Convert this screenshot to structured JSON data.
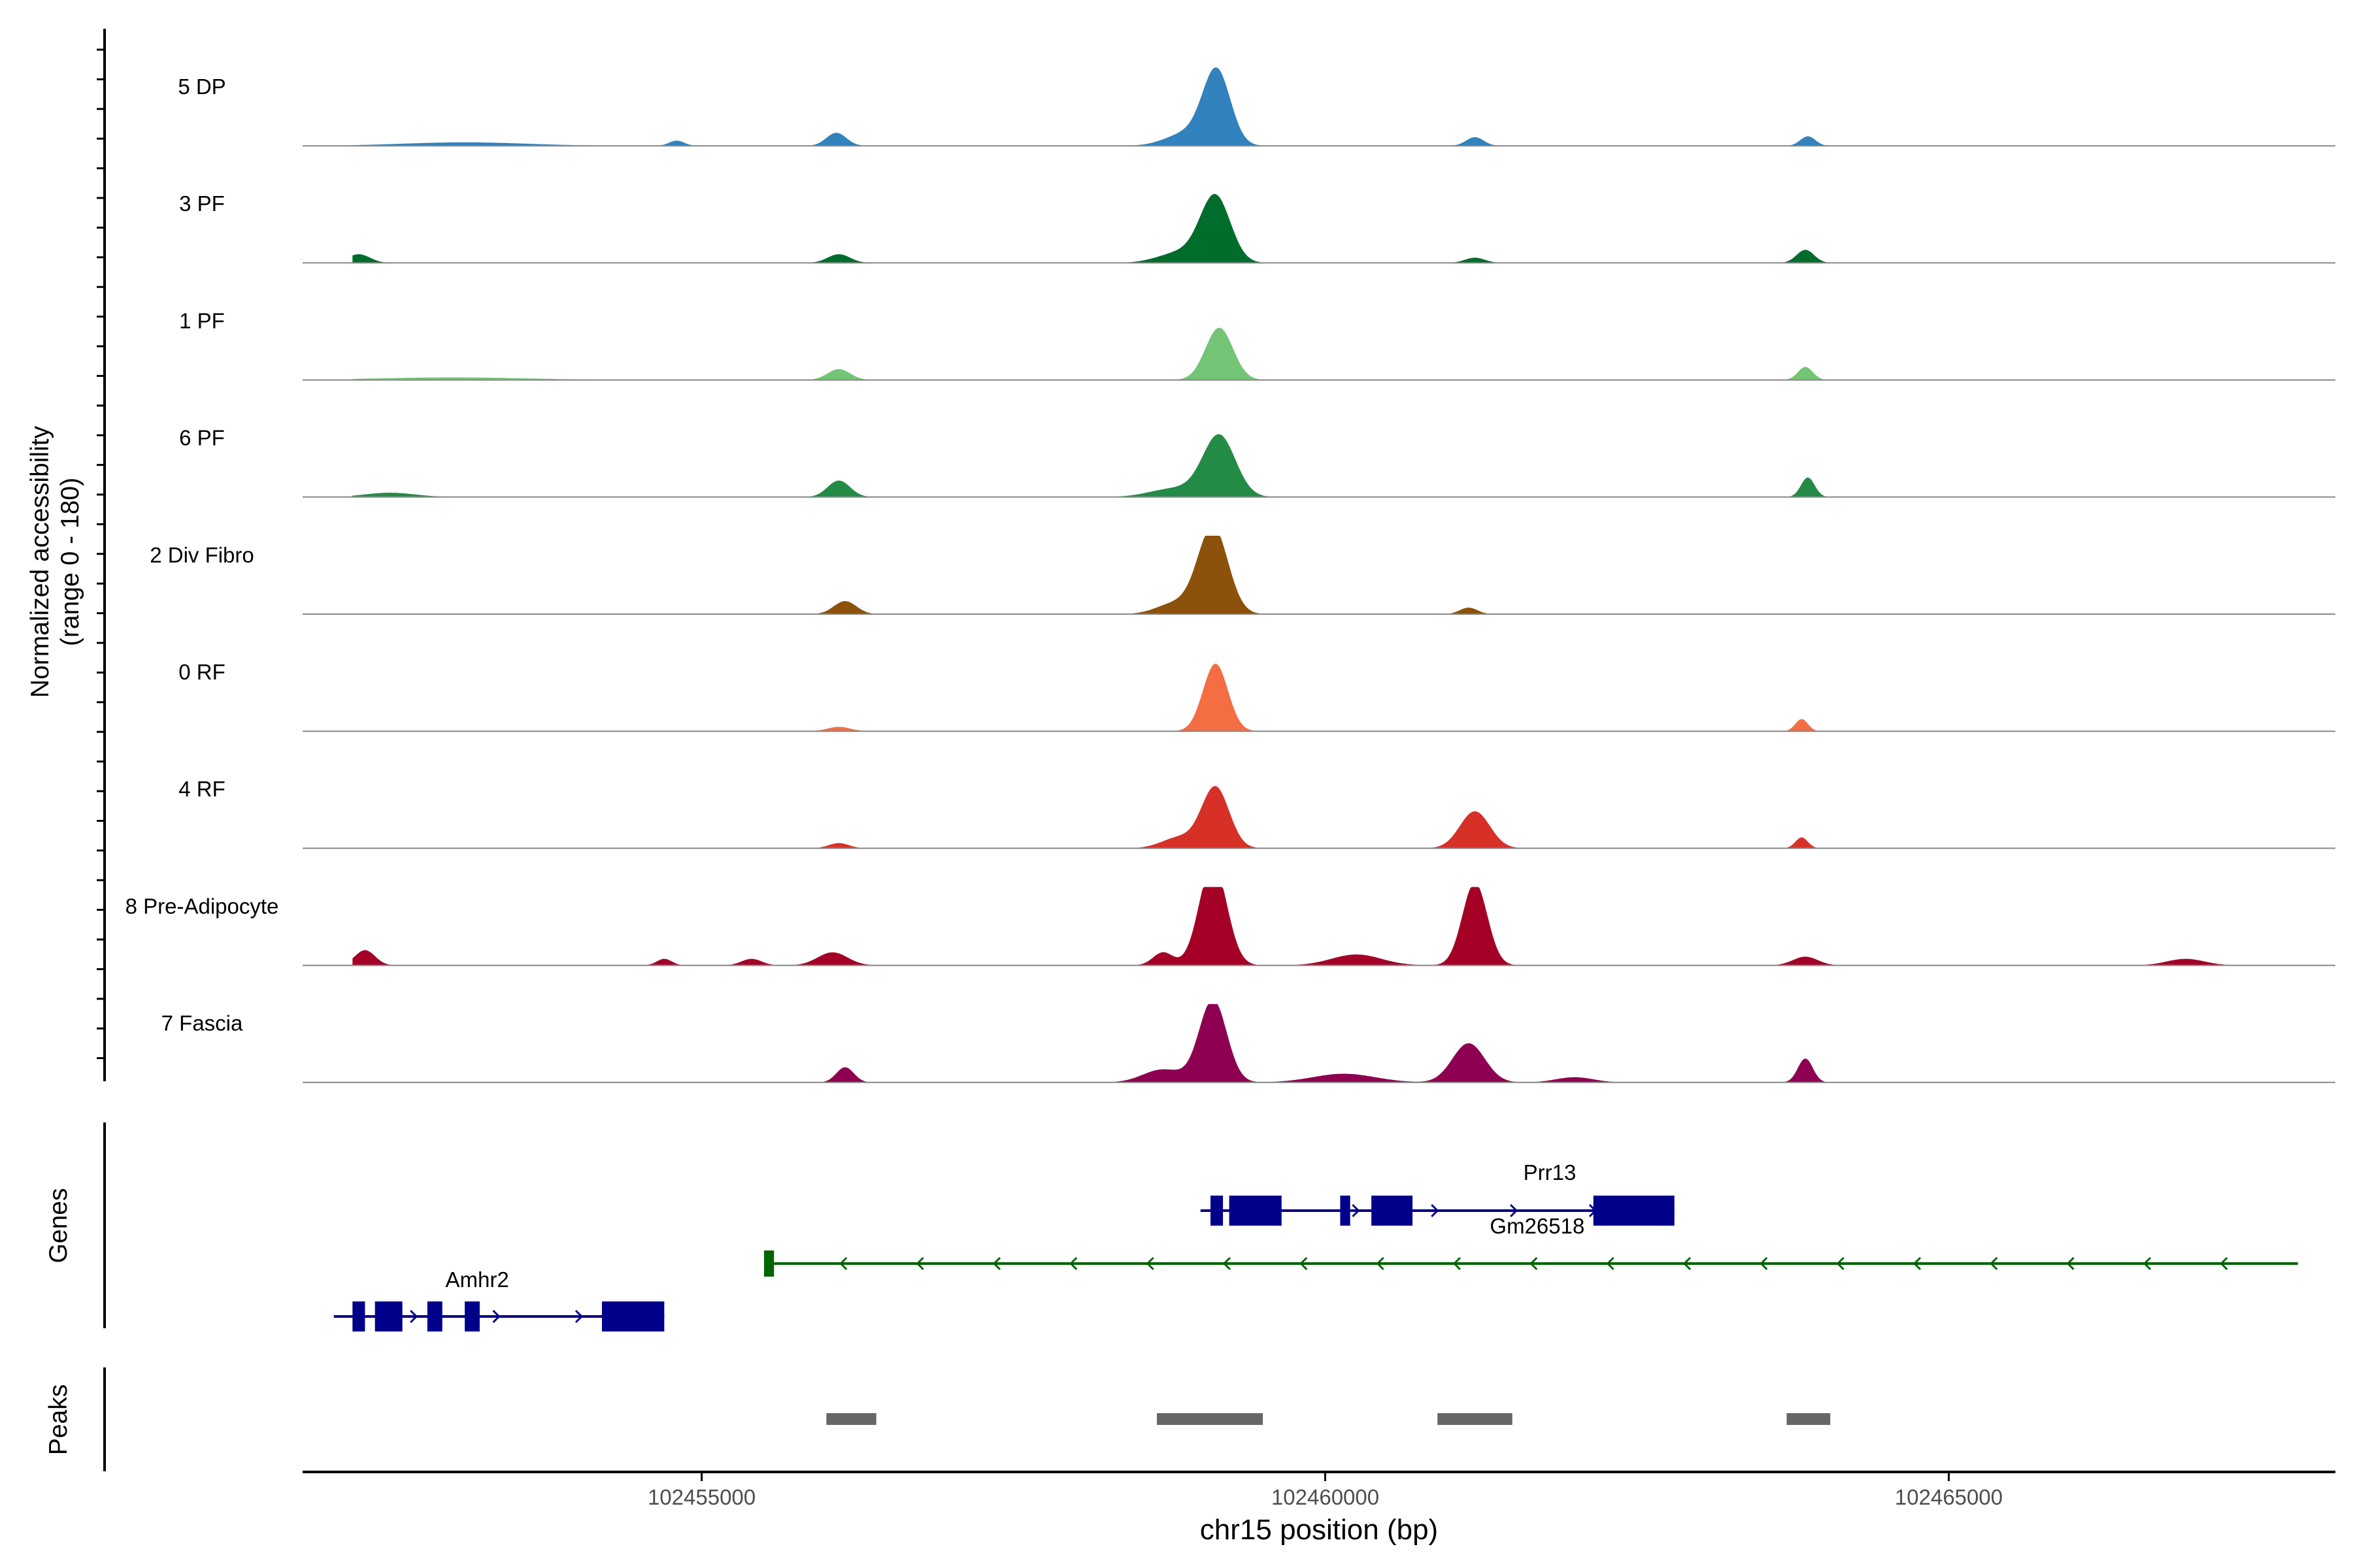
{
  "chart_data": {
    "type": "area",
    "title": "",
    "chromosome": "chr15",
    "xlabel": "chr15 position (bp)",
    "xlim": [
      102451800,
      102468100
    ],
    "x_ticks": [
      102455000,
      102460000,
      102465000
    ],
    "x_tick_labels": [
      "102455000",
      "102460000",
      "102465000"
    ],
    "ylabel": "Normalized accessibility",
    "ylabel2": "(range 0 - 180)",
    "ylim": [
      0,
      180
    ],
    "panel_labels": {
      "genes": "Genes",
      "peaks": "Peaks"
    },
    "tracks": [
      {
        "name": "5 DP",
        "color": "#3182bd",
        "peaks": [
          [
            102459130,
            168,
            110
          ],
          [
            102458900,
            30,
            170
          ],
          [
            102456080,
            30,
            80
          ],
          [
            102461200,
            20,
            70
          ],
          [
            102463870,
            22,
            60
          ],
          [
            102453100,
            8,
            500
          ],
          [
            102454800,
            12,
            60
          ]
        ]
      },
      {
        "name": "3 PF",
        "color": "#006d2c",
        "peaks": [
          [
            102459120,
            150,
            120
          ],
          [
            102458850,
            25,
            180
          ],
          [
            102452250,
            20,
            90
          ],
          [
            102456100,
            20,
            90
          ],
          [
            102461200,
            12,
            80
          ],
          [
            102463850,
            30,
            70
          ]
        ]
      },
      {
        "name": "1 PF",
        "color": "#74c476",
        "peaks": [
          [
            102459150,
            120,
            110
          ],
          [
            102456100,
            25,
            90
          ],
          [
            102463850,
            30,
            60
          ],
          [
            102453000,
            6,
            600
          ]
        ]
      },
      {
        "name": "6 PF",
        "color": "#238b45",
        "peaks": [
          [
            102459150,
            140,
            130
          ],
          [
            102458800,
            20,
            200
          ],
          [
            102456100,
            38,
            90
          ],
          [
            102463870,
            45,
            55
          ],
          [
            102452500,
            10,
            200
          ]
        ]
      },
      {
        "name": "2 Div Fibro",
        "color": "#8c510a",
        "peaks": [
          [
            102459100,
            200,
            120
          ],
          [
            102458800,
            25,
            150
          ],
          [
            102456150,
            30,
            90
          ],
          [
            102461150,
            15,
            70
          ]
        ]
      },
      {
        "name": "0 RF",
        "color": "#f46d43",
        "peaks": [
          [
            102459120,
            155,
            100
          ],
          [
            102456100,
            10,
            90
          ],
          [
            102463820,
            28,
            50
          ]
        ]
      },
      {
        "name": "4 RF",
        "color": "#d73027",
        "peaks": [
          [
            102459120,
            140,
            110
          ],
          [
            102458830,
            25,
            140
          ],
          [
            102461200,
            85,
            120
          ],
          [
            102456100,
            12,
            80
          ],
          [
            102463820,
            25,
            50
          ]
        ]
      },
      {
        "name": "8 Pre-Adipocyte",
        "color": "#a50026",
        "peaks": [
          [
            102459100,
            235,
            110
          ],
          [
            102458700,
            30,
            80
          ],
          [
            102461200,
            190,
            100
          ],
          [
            102460250,
            25,
            200
          ],
          [
            102452300,
            35,
            80
          ],
          [
            102456050,
            30,
            120
          ],
          [
            102454700,
            15,
            60
          ],
          [
            102455400,
            15,
            80
          ],
          [
            102463850,
            20,
            100
          ],
          [
            102466900,
            15,
            150
          ]
        ]
      },
      {
        "name": "7 Fascia",
        "color": "#8e0152",
        "peaks": [
          [
            102459100,
            190,
            110
          ],
          [
            102458700,
            30,
            160
          ],
          [
            102461150,
            90,
            130
          ],
          [
            102456150,
            35,
            70
          ],
          [
            102463850,
            55,
            60
          ],
          [
            102460150,
            20,
            250
          ],
          [
            102462000,
            12,
            150
          ]
        ]
      }
    ],
    "genes": [
      {
        "name": "Prr13",
        "color": "#00008b",
        "strand": "+",
        "start": 102459000,
        "end": 102462800,
        "exons": [
          [
            102459080,
            102459180
          ],
          [
            102459230,
            102459650
          ],
          [
            102460120,
            102460200
          ],
          [
            102460370,
            102460700
          ],
          [
            102462150,
            102462800
          ]
        ]
      },
      {
        "name": "Gm26518",
        "color": "#006400",
        "strand": "-",
        "start": 102455500,
        "end": 102467800,
        "exons": [
          [
            102455500,
            102455580
          ]
        ]
      },
      {
        "name": "Amhr2",
        "color": "#00008b",
        "strand": "+",
        "start": 102452050,
        "end": 102454700,
        "exons": [
          [
            102452200,
            102452300
          ],
          [
            102452380,
            102452600
          ],
          [
            102452800,
            102452920
          ],
          [
            102453100,
            102453220
          ],
          [
            102454200,
            102454700
          ]
        ]
      }
    ],
    "peak_regions": [
      [
        102456000,
        102456400
      ],
      [
        102458650,
        102459500
      ],
      [
        102460900,
        102461500
      ],
      [
        102463700,
        102464050
      ]
    ]
  }
}
